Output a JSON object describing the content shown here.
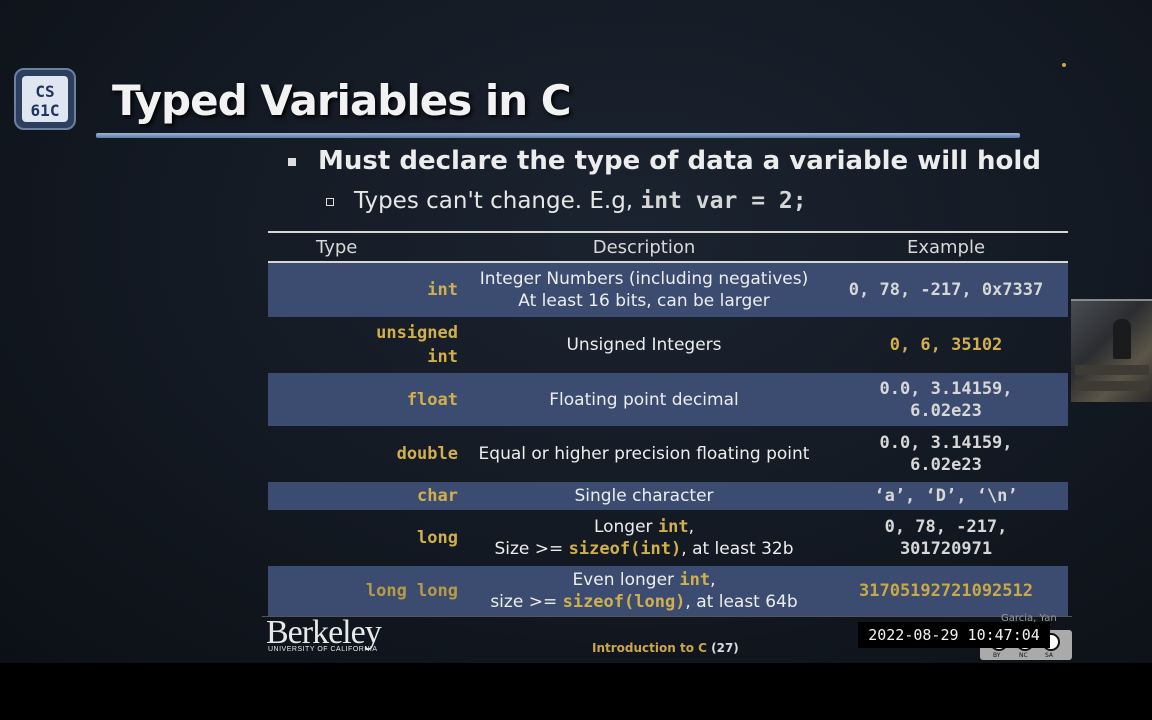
{
  "logo": {
    "line1": "CS",
    "line2": "61C"
  },
  "title": "Typed Variables in C",
  "bullet_main": "Must declare the type of data a variable will hold",
  "bullet_sub": {
    "text": "Types can't change. E.g, ",
    "code": "int var = 2;"
  },
  "table": {
    "headers": {
      "type": "Type",
      "description": "Description",
      "example": "Example"
    },
    "rows": [
      {
        "type": "int",
        "desc1": "Integer Numbers (including negatives)",
        "desc2": "At least 16 bits, can be larger",
        "ex1": "0, 78, -217, 0x7337",
        "ex2": ""
      },
      {
        "type1": "unsigned",
        "type2": "int",
        "desc1": "Unsigned Integers",
        "ex1": "0, 6, 35102"
      },
      {
        "type": "float",
        "desc1": "Floating point decimal",
        "ex1": "0.0, 3.14159,",
        "ex2": "6.02e23"
      },
      {
        "type": "double",
        "desc1": "Equal or higher precision floating point",
        "ex1": "0.0, 3.14159,",
        "ex2": "6.02e23"
      },
      {
        "type": "char",
        "desc1": "Single character",
        "ex1": "‘a’, ‘D’, ‘\\n’"
      },
      {
        "type": "long",
        "desc1_pre": "Longer ",
        "desc1_code": "int",
        "desc1_post": ",",
        "desc2_pre": "Size >= ",
        "desc2_code": "sizeof(int)",
        "desc2_post": ", at least 32b",
        "ex1": "0, 78, -217,",
        "ex2": "301720971"
      },
      {
        "type": "long long",
        "desc1_pre": "Even longer ",
        "desc1_code": "int",
        "desc1_post": ",",
        "desc2_pre": "size >= ",
        "desc2_code": "sizeof(long)",
        "desc2_post": ", at least 64b",
        "ex1": "31705192721092512"
      }
    ]
  },
  "footer": {
    "berkeley": "Berkeley",
    "berkeley_sub": "UNIVERSITY OF CALIFORNIA",
    "label": "Introduction to C",
    "page": "(27)",
    "author": "Garcia, Yan",
    "timestamp": "2022-08-29  10:47:04",
    "cc": {
      "by": "BY",
      "nc": "NC",
      "sa": "SA"
    }
  },
  "colors": {
    "accent_gold": "#c9a847",
    "row_shade": "#3b4c70",
    "title_rule": "#7f97c4"
  }
}
